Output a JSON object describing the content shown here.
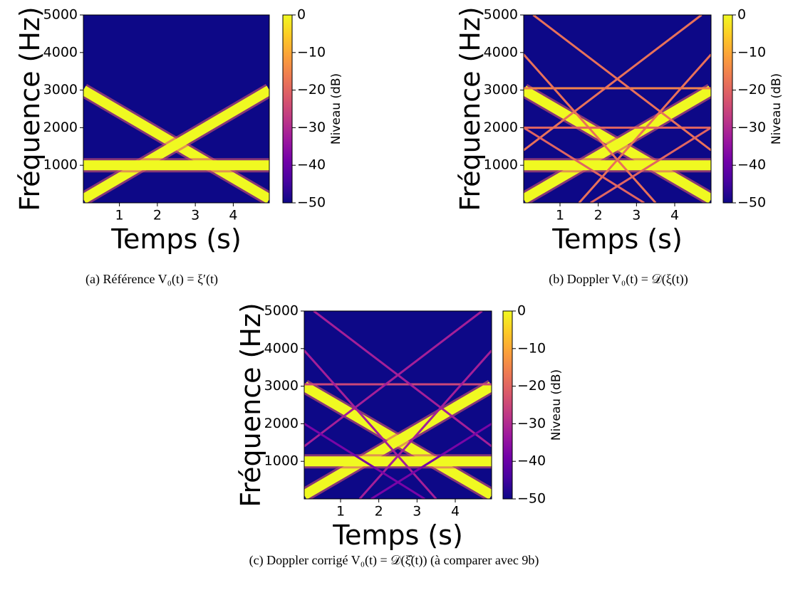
{
  "chart_data": [
    {
      "type": "spectrogram",
      "xlabel": "Temps (s)",
      "ylabel": "Fréquence (Hz)",
      "xlim": [
        0.05,
        4.95
      ],
      "ylim": [
        0,
        5000
      ],
      "xticks": [
        1,
        2,
        3,
        4
      ],
      "yticks": [
        1000,
        2000,
        3000,
        4000,
        5000
      ],
      "colorbar": {
        "label": "Niveau (dB)",
        "clim": [
          -50,
          0
        ],
        "ticks": [
          0,
          {
            "value": -10,
            "label": "−10"
          },
          {
            "value": -20,
            "label": "−20"
          },
          {
            "value": -30,
            "label": "−30"
          },
          {
            "value": -40,
            "label": "−40"
          },
          {
            "value": -50,
            "label": "−50"
          }
        ]
      },
      "tracks": [
        {
          "x": [
            0.05,
            4.95
          ],
          "y": [
            3000,
            100
          ],
          "level": 0
        },
        {
          "x": [
            0.05,
            4.95
          ],
          "y": [
            100,
            3000
          ],
          "level": 0
        },
        {
          "x": [
            0.05,
            4.95
          ],
          "y": [
            1000,
            1000
          ],
          "level": 0
        }
      ],
      "caption": "(a) Référence V₀(t) = ξ′(t)"
    },
    {
      "type": "spectrogram",
      "xlabel": "Temps (s)",
      "ylabel": "Fréquence (Hz)",
      "xlim": [
        0.05,
        4.95
      ],
      "ylim": [
        0,
        5000
      ],
      "xticks": [
        1,
        2,
        3,
        4
      ],
      "yticks": [
        1000,
        2000,
        3000,
        4000,
        5000
      ],
      "colorbar": {
        "label": "Niveau (dB)",
        "clim": [
          -50,
          0
        ],
        "ticks": [
          0,
          {
            "value": -10,
            "label": "−10"
          },
          {
            "value": -20,
            "label": "−20"
          },
          {
            "value": -30,
            "label": "−30"
          },
          {
            "value": -40,
            "label": "−40"
          },
          {
            "value": -50,
            "label": "−50"
          }
        ]
      },
      "tracks": [
        {
          "x": [
            0.05,
            4.95
          ],
          "y": [
            3000,
            100
          ],
          "level": 0
        },
        {
          "x": [
            0.05,
            4.95
          ],
          "y": [
            100,
            3000
          ],
          "level": 0
        },
        {
          "x": [
            0.05,
            4.95
          ],
          "y": [
            1000,
            1000
          ],
          "level": 0
        },
        {
          "x": [
            0.05,
            4.95
          ],
          "y": [
            3050,
            3050
          ],
          "level": -15
        },
        {
          "x": [
            0.05,
            4.95
          ],
          "y": [
            2000,
            2000
          ],
          "level": -20
        },
        {
          "x": [
            0.3,
            4.95
          ],
          "y": [
            5000,
            1400
          ],
          "level": -18
        },
        {
          "x": [
            0.05,
            4.7
          ],
          "y": [
            1400,
            5000
          ],
          "level": -18
        },
        {
          "x": [
            0.05,
            3.5
          ],
          "y": [
            3950,
            0
          ],
          "level": -18
        },
        {
          "x": [
            1.5,
            4.95
          ],
          "y": [
            0,
            3950
          ],
          "level": -18
        },
        {
          "x": [
            0.05,
            3.2
          ],
          "y": [
            2000,
            0
          ],
          "level": -20
        },
        {
          "x": [
            1.8,
            4.95
          ],
          "y": [
            0,
            2000
          ],
          "level": -20
        }
      ],
      "caption": "(b) Doppler V₀(t) = 𝒟(ξ(t))"
    },
    {
      "type": "spectrogram",
      "xlabel": "Temps (s)",
      "ylabel": "Fréquence (Hz)",
      "xlim": [
        0.05,
        4.95
      ],
      "ylim": [
        0,
        5000
      ],
      "xticks": [
        1,
        2,
        3,
        4
      ],
      "yticks": [
        1000,
        2000,
        3000,
        4000,
        5000
      ],
      "colorbar": {
        "label": "Niveau (dB)",
        "clim": [
          -50,
          0
        ],
        "ticks": [
          0,
          {
            "value": -10,
            "label": "−10"
          },
          {
            "value": -20,
            "label": "−20"
          },
          {
            "value": -30,
            "label": "−30"
          },
          {
            "value": -40,
            "label": "−40"
          },
          {
            "value": -50,
            "label": "−50"
          }
        ]
      },
      "tracks": [
        {
          "x": [
            0.05,
            4.95
          ],
          "y": [
            3000,
            100
          ],
          "level": 0
        },
        {
          "x": [
            0.05,
            4.95
          ],
          "y": [
            100,
            3000
          ],
          "level": 0
        },
        {
          "x": [
            0.05,
            4.95
          ],
          "y": [
            1000,
            1000
          ],
          "level": 0
        },
        {
          "x": [
            0.05,
            4.95
          ],
          "y": [
            3050,
            3050
          ],
          "level": -25
        },
        {
          "x": [
            0.3,
            4.95
          ],
          "y": [
            5000,
            1400
          ],
          "level": -32
        },
        {
          "x": [
            0.05,
            4.7
          ],
          "y": [
            1400,
            5000
          ],
          "level": -32
        },
        {
          "x": [
            0.05,
            3.5
          ],
          "y": [
            3950,
            0
          ],
          "level": -32
        },
        {
          "x": [
            1.5,
            4.95
          ],
          "y": [
            0,
            3950
          ],
          "level": -32
        },
        {
          "x": [
            0.05,
            3.2
          ],
          "y": [
            2000,
            0
          ],
          "level": -38
        },
        {
          "x": [
            1.8,
            4.95
          ],
          "y": [
            0,
            2000
          ],
          "level": -38
        }
      ],
      "caption": "(c) Doppler corrigé V₀(t) = 𝒟(ξ̂(t)) (à comparer avec 9b)"
    }
  ]
}
